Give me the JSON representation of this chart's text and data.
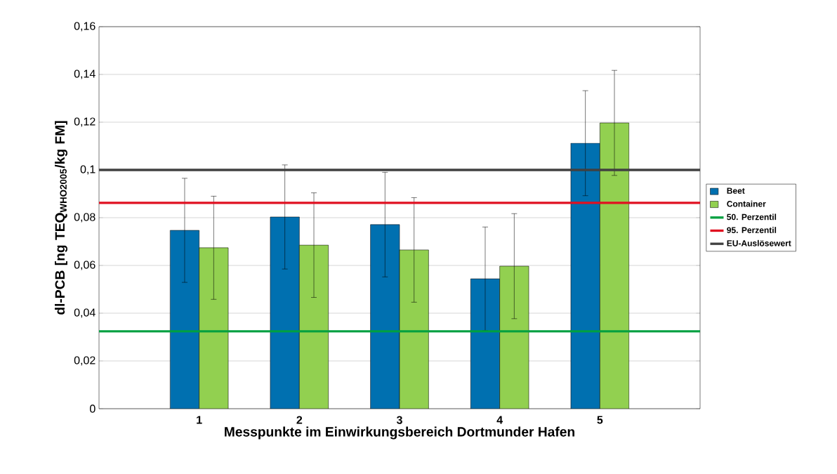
{
  "chart_data": {
    "type": "bar",
    "xlabel": "Messpunkte im Einwirkungsbereich Dortmunder Hafen",
    "ylabel": "dl-PCB [ng TEQ$_{WHO2005}$/kg FM]",
    "categories": [
      "1",
      "2",
      "3",
      "4",
      "5"
    ],
    "series": [
      {
        "name": "Beet",
        "color": "#0070b0",
        "values": [
          0.0747,
          0.0803,
          0.0771,
          0.0544,
          0.1112
        ],
        "errors": [
          0.0218,
          0.0218,
          0.0219,
          0.0217,
          0.022
        ]
      },
      {
        "name": "Container",
        "color": "#92d050",
        "values": [
          0.0674,
          0.0685,
          0.0665,
          0.0597,
          0.1197
        ],
        "errors": [
          0.0216,
          0.0219,
          0.0219,
          0.022,
          0.022
        ]
      }
    ],
    "ylim": [
      0,
      0.16
    ],
    "yticks": [
      {
        "value": 0,
        "label": "0"
      },
      {
        "value": 0.02,
        "label": "0,02"
      },
      {
        "value": 0.04,
        "label": "0,04"
      },
      {
        "value": 0.06,
        "label": "0,06"
      },
      {
        "value": 0.08,
        "label": "0,08"
      },
      {
        "value": 0.1,
        "label": "0,1"
      },
      {
        "value": 0.12,
        "label": "0,12"
      },
      {
        "value": 0.14,
        "label": "0,14"
      },
      {
        "value": 0.16,
        "label": "0,16"
      }
    ],
    "ref_lines": [
      {
        "axis": "y",
        "value": 0.0324,
        "label": "50. Perzentil",
        "color": "#00a040"
      },
      {
        "axis": "y",
        "value": 0.0862,
        "label": "95. Perzentil",
        "color": "#e01020"
      },
      {
        "axis": "y",
        "value": 0.1,
        "label": "EU-Auslösewert",
        "color": "#404040"
      }
    ],
    "grid": "y",
    "legend": "right"
  }
}
